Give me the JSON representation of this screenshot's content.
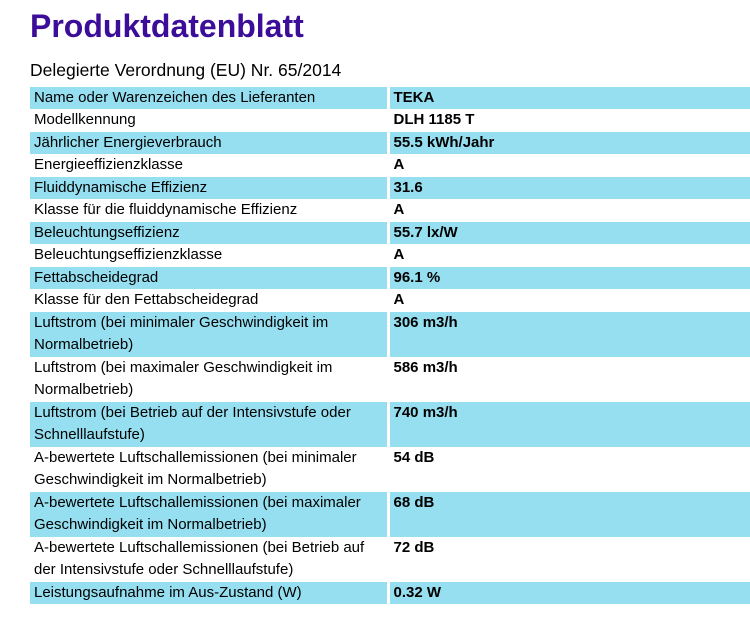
{
  "title": "Produktdatenblatt",
  "subtitle": "Delegierte Verordnung (EU) Nr. 65/2014",
  "colors": {
    "title": "#3b0d99",
    "row_highlight": "#96dff0",
    "text": "#000000",
    "divider": "#ffffff"
  },
  "table": {
    "rows": [
      {
        "label": "Name oder Warenzeichen des Lieferanten",
        "value": "TEKA"
      },
      {
        "label": "Modellkennung",
        "value": "DLH 1185 T"
      },
      {
        "label": "Jährlicher Energieverbrauch",
        "value": "55.5 kWh/Jahr"
      },
      {
        "label": "Energieeffizienzklasse",
        "value": "A"
      },
      {
        "label": "Fluiddynamische Effizienz",
        "value": "31.6"
      },
      {
        "label": "Klasse für die fluiddynamische Effizienz",
        "value": "A"
      },
      {
        "label": "Beleuchtungseffizienz",
        "value": "55.7 lx/W"
      },
      {
        "label": "Beleuchtungseffizienzklasse",
        "value": "A"
      },
      {
        "label": "Fettabscheidegrad",
        "value": "96.1 %"
      },
      {
        "label": "Klasse für den Fettabscheidegrad",
        "value": "A"
      },
      {
        "label": "Luftstrom (bei minimaler Geschwindigkeit im Normalbetrieb)",
        "value": "306 m3/h"
      },
      {
        "label": "Luftstrom (bei maximaler Geschwindigkeit im Normalbetrieb)",
        "value": "586 m3/h"
      },
      {
        "label": "Luftstrom (bei Betrieb auf der Intensivstufe oder Schnelllaufstufe)",
        "value": "740 m3/h"
      },
      {
        "label": "A-bewertete Luftschallemissionen (bei minimaler Geschwindigkeit im Normalbetrieb)",
        "value": "54 dB"
      },
      {
        "label": "A-bewertete Luftschallemissionen (bei maximaler Geschwindigkeit im Normalbetrieb)",
        "value": "68 dB"
      },
      {
        "label": "A-bewertete Luftschallemissionen (bei Betrieb auf der Intensivstufe oder Schnelllaufstufe)",
        "value": "72 dB"
      },
      {
        "label": "Leistungsaufnahme im Aus-Zustand (W)",
        "value": "0.32 W"
      }
    ]
  }
}
